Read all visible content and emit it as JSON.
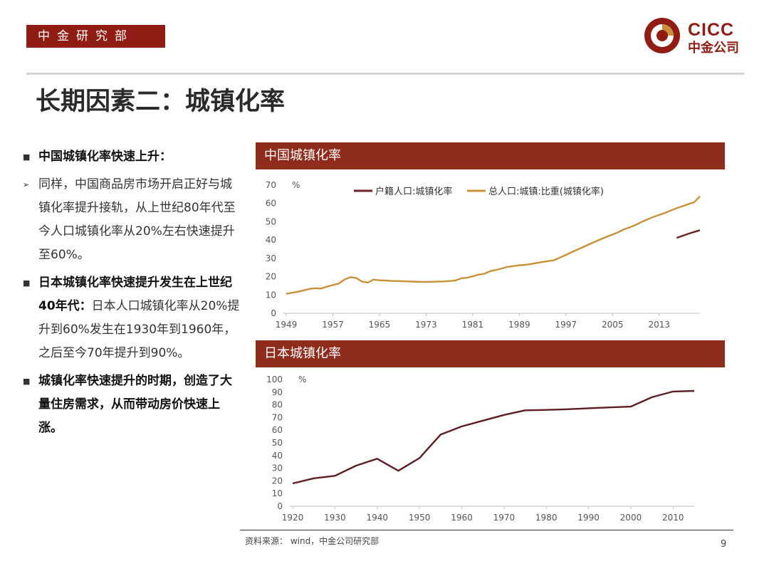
{
  "header": {
    "department": "中金研究部",
    "logo_en": "CICC",
    "logo_cn": "中金公司",
    "colors": {
      "brand": "#8f1d14",
      "panel": "#8f2c1c"
    }
  },
  "title": "长期因素二：城镇化率",
  "bullets": [
    {
      "marker": "■",
      "head": "中国城镇化率快速上升：",
      "text": ""
    },
    {
      "marker": "➢",
      "head": "",
      "text": "同样，中国商品房市场开启正好与城镇化率提升接轨，从上世纪80年代至今人口城镇化率从20%左右快速提升至60%。"
    },
    {
      "marker": "■",
      "head": "日本城镇化率快速提升发生在上世纪40年代：",
      "text": "日本人口城镇化率从20%提升到60%发生在1930年到1960年，之后至今70年提升到90%。"
    },
    {
      "marker": "■",
      "head": "城镇化率快速提升的时期，创造了大量住房需求，从而带动房价快速上涨。",
      "text": ""
    }
  ],
  "chart_data": [
    {
      "panel_title": "中国城镇化率",
      "type": "line",
      "ylabel": "%",
      "ylim": [
        0,
        70
      ],
      "yticks": [
        0,
        10,
        20,
        30,
        40,
        50,
        60,
        70
      ],
      "xlim": [
        1949,
        2020
      ],
      "xticks": [
        1949,
        1957,
        1965,
        1973,
        1981,
        1989,
        1997,
        2005,
        2013
      ],
      "legend_position": "top",
      "series": [
        {
          "name": "户籍人口:城镇化率",
          "color": "#6b2226",
          "x": [
            2016,
            2017,
            2018,
            2019,
            2020
          ],
          "y": [
            41.2,
            42.3,
            43.4,
            44.4,
            45.4
          ]
        },
        {
          "name": "总人口:城镇:比重(城镇化率)",
          "color": "#c9903a",
          "x": [
            1949,
            1950,
            1951,
            1952,
            1953,
            1954,
            1955,
            1956,
            1957,
            1958,
            1959,
            1960,
            1961,
            1962,
            1963,
            1964,
            1965,
            1966,
            1967,
            1968,
            1969,
            1970,
            1971,
            1972,
            1973,
            1974,
            1975,
            1976,
            1977,
            1978,
            1979,
            1980,
            1981,
            1982,
            1983,
            1984,
            1985,
            1986,
            1987,
            1988,
            1989,
            1990,
            1991,
            1992,
            1993,
            1994,
            1995,
            1996,
            1997,
            1998,
            1999,
            2000,
            2001,
            2002,
            2003,
            2004,
            2005,
            2006,
            2007,
            2008,
            2009,
            2010,
            2011,
            2012,
            2013,
            2014,
            2015,
            2016,
            2017,
            2018,
            2019,
            2020
          ],
          "y": [
            10.6,
            11.2,
            11.8,
            12.5,
            13.3,
            13.7,
            13.5,
            14.6,
            15.4,
            16.2,
            18.4,
            19.7,
            19.3,
            17.3,
            16.8,
            18.4,
            18.0,
            17.9,
            17.7,
            17.6,
            17.5,
            17.4,
            17.3,
            17.1,
            17.2,
            17.2,
            17.3,
            17.4,
            17.6,
            17.9,
            19.0,
            19.4,
            20.2,
            21.1,
            21.6,
            23.0,
            23.7,
            24.5,
            25.3,
            25.8,
            26.2,
            26.4,
            26.9,
            27.5,
            28.0,
            28.5,
            29.0,
            30.5,
            31.9,
            33.4,
            34.8,
            36.2,
            37.7,
            39.1,
            40.5,
            41.8,
            43.0,
            44.3,
            45.9,
            47.0,
            48.3,
            49.9,
            51.3,
            52.6,
            53.7,
            54.8,
            56.1,
            57.4,
            58.5,
            59.6,
            60.6,
            63.9
          ]
        }
      ]
    },
    {
      "panel_title": "日本城镇化率",
      "type": "line",
      "ylabel": "%",
      "ylim": [
        0,
        100
      ],
      "yticks": [
        0,
        10,
        20,
        30,
        40,
        50,
        60,
        70,
        80,
        90,
        100
      ],
      "xlim": [
        1920,
        2015
      ],
      "xticks": [
        1920,
        1930,
        1940,
        1950,
        1960,
        1970,
        1980,
        1990,
        2000,
        2010
      ],
      "series": [
        {
          "name": "日本城镇化率",
          "color": "#5c1e22",
          "x": [
            1920,
            1925,
            1930,
            1935,
            1940,
            1945,
            1950,
            1955,
            1960,
            1965,
            1970,
            1975,
            1980,
            1985,
            1990,
            1995,
            2000,
            2005,
            2010,
            2015
          ],
          "y": [
            18,
            22,
            24,
            32,
            37.5,
            28,
            38,
            56.5,
            63,
            67.5,
            72,
            75.7,
            76,
            76.5,
            77.3,
            78,
            78.6,
            86,
            90.5,
            91
          ]
        }
      ]
    }
  ],
  "source": "资料来源： wind，中金公司研究部",
  "page_number": "9"
}
